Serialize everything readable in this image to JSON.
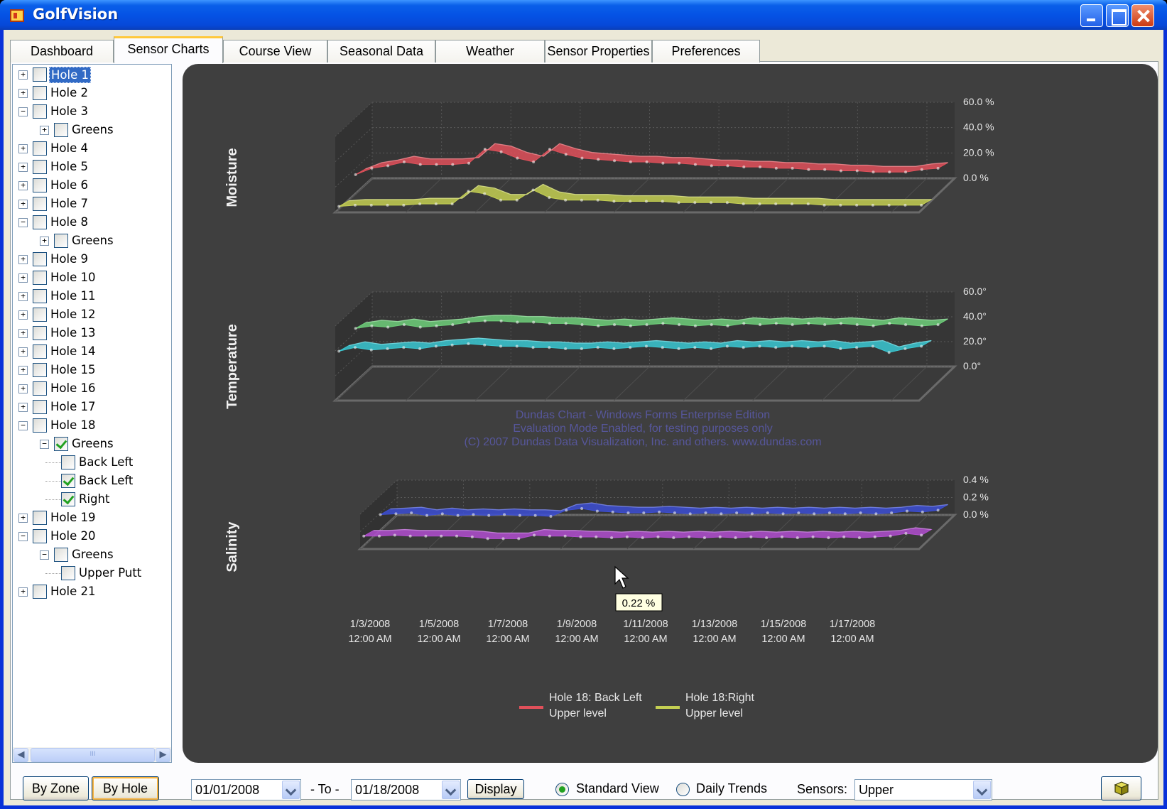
{
  "window": {
    "title": "GolfVision"
  },
  "tabs": [
    {
      "label": "Dashboard"
    },
    {
      "label": "Sensor Charts"
    },
    {
      "label": "Course View"
    },
    {
      "label": "Seasonal Data"
    },
    {
      "label": "Weather"
    },
    {
      "label": "Sensor Properties"
    },
    {
      "label": "Preferences"
    }
  ],
  "active_tab": "Sensor Charts",
  "tree": [
    {
      "label": "Hole 1",
      "level": 0,
      "expander": "+",
      "checked": false,
      "selected": true
    },
    {
      "label": "Hole 2",
      "level": 0,
      "expander": "+",
      "checked": false
    },
    {
      "label": "Hole 3",
      "level": 0,
      "expander": "-",
      "checked": false
    },
    {
      "label": "Greens",
      "level": 1,
      "expander": "+",
      "checked": false
    },
    {
      "label": "Hole 4",
      "level": 0,
      "expander": "+",
      "checked": false
    },
    {
      "label": "Hole 5",
      "level": 0,
      "expander": "+",
      "checked": false
    },
    {
      "label": "Hole 6",
      "level": 0,
      "expander": "+",
      "checked": false
    },
    {
      "label": "Hole 7",
      "level": 0,
      "expander": "+",
      "checked": false
    },
    {
      "label": "Hole 8",
      "level": 0,
      "expander": "-",
      "checked": false
    },
    {
      "label": "Greens",
      "level": 1,
      "expander": "+",
      "checked": false
    },
    {
      "label": "Hole 9",
      "level": 0,
      "expander": "+",
      "checked": false
    },
    {
      "label": "Hole 10",
      "level": 0,
      "expander": "+",
      "checked": false
    },
    {
      "label": "Hole 11",
      "level": 0,
      "expander": "+",
      "checked": false
    },
    {
      "label": "Hole 12",
      "level": 0,
      "expander": "+",
      "checked": false
    },
    {
      "label": "Hole 13",
      "level": 0,
      "expander": "+",
      "checked": false
    },
    {
      "label": "Hole 14",
      "level": 0,
      "expander": "+",
      "checked": false
    },
    {
      "label": "Hole 15",
      "level": 0,
      "expander": "+",
      "checked": false
    },
    {
      "label": "Hole 16",
      "level": 0,
      "expander": "+",
      "checked": false
    },
    {
      "label": "Hole 17",
      "level": 0,
      "expander": "+",
      "checked": false
    },
    {
      "label": "Hole 18",
      "level": 0,
      "expander": "-",
      "checked": false
    },
    {
      "label": "Greens",
      "level": 1,
      "expander": "-",
      "checked": true
    },
    {
      "label": "Back Left",
      "level": 2,
      "expander": "",
      "checked": false
    },
    {
      "label": "Back Left",
      "level": 2,
      "expander": "",
      "checked": true
    },
    {
      "label": "Right",
      "level": 2,
      "expander": "",
      "checked": true
    },
    {
      "label": "Hole 19",
      "level": 0,
      "expander": "+",
      "checked": false
    },
    {
      "label": "Hole 20",
      "level": 0,
      "expander": "-",
      "checked": false
    },
    {
      "label": "Greens",
      "level": 1,
      "expander": "-",
      "checked": false
    },
    {
      "label": "Upper Putt",
      "level": 2,
      "expander": "",
      "checked": false
    },
    {
      "label": "Hole 21",
      "level": 0,
      "expander": "+",
      "checked": false
    }
  ],
  "scroll_grip": "III",
  "bottom": {
    "by_zone": "By Zone",
    "by_hole": "By Hole",
    "from_date": "01/01/2008",
    "to_label": "- To -",
    "to_date": "01/18/2008",
    "display": "Display",
    "standard_view": "Standard View",
    "daily_trends": "Daily Trends",
    "view_selected": "Standard View",
    "sensors_label": "Sensors:",
    "sensors_value": "Upper",
    "cube_icon": "cube-icon"
  },
  "chart_data": [
    {
      "type": "line",
      "title": "Moisture",
      "ylim": [
        0,
        60
      ],
      "yticks": [
        "60.0 %",
        "40.0 %",
        "20.0 %",
        "0.0 %"
      ],
      "series": [
        {
          "name": "Hole 18: Back Left Upper level",
          "color": "#e0505a",
          "values": [
            15,
            20,
            22,
            25,
            23,
            23,
            23,
            24,
            35,
            33,
            28,
            25,
            35,
            31,
            28,
            27,
            26,
            25,
            25,
            24,
            24,
            23,
            22,
            22,
            21,
            21,
            20,
            20,
            19,
            19,
            18,
            18,
            17,
            17,
            17,
            19,
            20
          ]
        },
        {
          "name": "Hole 18:Right Upper level",
          "color": "#c4cf52",
          "values": [
            2,
            3,
            3,
            3,
            3,
            4,
            4,
            4,
            14,
            12,
            7,
            7,
            15,
            9,
            7,
            7,
            7,
            6,
            6,
            6,
            6,
            5,
            5,
            5,
            5,
            4,
            4,
            4,
            4,
            4,
            3,
            3,
            3,
            3,
            3,
            3,
            3
          ]
        }
      ]
    },
    {
      "type": "line",
      "title": "Temperature",
      "ylim": [
        0,
        60
      ],
      "yticks": [
        "60.0°",
        "40.0°",
        "20.0°",
        "0.0°"
      ],
      "series": [
        {
          "name": "",
          "color": "#6ecf7a",
          "values": [
            43,
            45,
            44,
            46,
            44,
            45,
            46,
            48,
            49,
            49,
            48,
            48,
            47,
            47,
            46,
            45,
            46,
            45,
            46,
            47,
            46,
            45,
            46,
            45,
            47,
            46,
            47,
            46,
            47,
            46,
            47,
            46,
            45,
            47,
            46,
            45,
            46
          ]
        },
        {
          "name": "",
          "color": "#3ac8d2",
          "values": [
            37,
            40,
            38,
            39,
            40,
            39,
            41,
            42,
            43,
            42,
            41,
            41,
            40,
            40,
            39,
            39,
            40,
            39,
            40,
            41,
            40,
            39,
            40,
            39,
            41,
            40,
            41,
            40,
            41,
            40,
            41,
            39,
            40,
            41,
            36,
            39,
            41
          ]
        }
      ]
    },
    {
      "type": "line",
      "title": "Salinity",
      "ylim": [
        0,
        0.4
      ],
      "yticks": [
        "0.4 %",
        "0.2 %",
        "0.0 %"
      ],
      "series": [
        {
          "name": "",
          "color": "#3c4ed4",
          "values": [
            0.18,
            0.19,
            0.2,
            0.17,
            0.19,
            0.17,
            0.18,
            0.17,
            0.18,
            0.17,
            0.17,
            0.16,
            0.23,
            0.25,
            0.22,
            0.21,
            0.2,
            0.2,
            0.21,
            0.2,
            0.19,
            0.2,
            0.19,
            0.2,
            0.19,
            0.2,
            0.19,
            0.2,
            0.19,
            0.2,
            0.19,
            0.2,
            0.19,
            0.2,
            0.22,
            0.21,
            0.23
          ]
        },
        {
          "name": "",
          "color": "#b24ed0",
          "values": [
            0.11,
            0.11,
            0.12,
            0.11,
            0.11,
            0.11,
            0.11,
            0.1,
            0.08,
            0.08,
            0.08,
            0.12,
            0.11,
            0.11,
            0.1,
            0.1,
            0.09,
            0.1,
            0.09,
            0.1,
            0.09,
            0.1,
            0.09,
            0.1,
            0.09,
            0.1,
            0.09,
            0.1,
            0.09,
            0.1,
            0.09,
            0.1,
            0.09,
            0.1,
            0.11,
            0.14,
            0.12
          ]
        }
      ]
    }
  ],
  "chart_common": {
    "x_range": [
      "1/2/2008",
      "1/18/2008"
    ],
    "xticks": [
      [
        "1/3/2008",
        "12:00 AM"
      ],
      [
        "1/5/2008",
        "12:00 AM"
      ],
      [
        "1/7/2008",
        "12:00 AM"
      ],
      [
        "1/9/2008",
        "12:00 AM"
      ],
      [
        "1/11/2008",
        "12:00 AM"
      ],
      [
        "1/13/2008",
        "12:00 AM"
      ],
      [
        "1/15/2008",
        "12:00 AM"
      ],
      [
        "1/17/2008",
        "12:00 AM"
      ]
    ],
    "legend": [
      {
        "line1": "Hole 18: Back Left",
        "line2": "Upper level",
        "color": "#e0505a"
      },
      {
        "line1": "Hole 18:Right",
        "line2": "Upper level",
        "color": "#c4cf52"
      }
    ],
    "legend_position": "bottom",
    "tooltip": "0.22 %",
    "watermark": [
      "Dundas Chart - Windows Forms Enterprise Edition",
      "Evaluation Mode Enabled, for testing purposes only",
      "(C) 2007 Dundas Data Visualization, Inc. and others. www.dundas.com"
    ]
  }
}
